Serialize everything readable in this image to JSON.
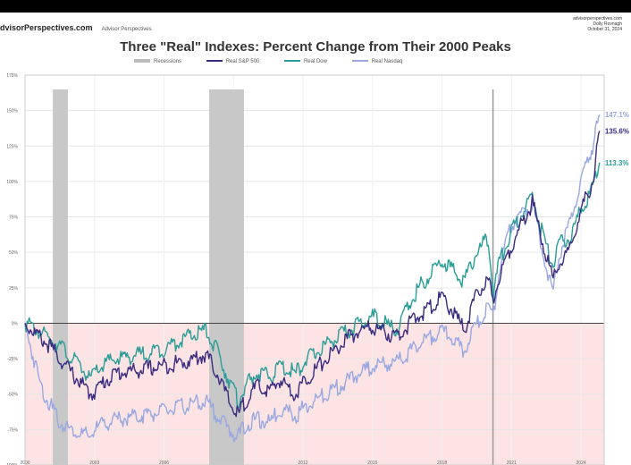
{
  "header": {
    "brand": "dvisorPerspectives.com",
    "brand_sub": "Advisor Perspectives",
    "corner_lines": [
      "advisorperspectives.com",
      "Dolly Rovnagh",
      "October 31, 2024"
    ],
    "title": "Three \"Real\" Indexes: Percent Change from Their 2000 Peaks"
  },
  "chart_data": {
    "type": "line",
    "title": "Three \"Real\" Indexes: Percent Change from Their 2000 Peaks",
    "xlabel": "",
    "ylabel": "",
    "xlim": [
      2000,
      2025
    ],
    "ylim": [
      -100,
      175
    ],
    "y_ticks": [
      175,
      150,
      125,
      100,
      75,
      50,
      25,
      0,
      -25,
      -50,
      -75,
      -100
    ],
    "y_tick_labels": [
      "175%",
      "150%",
      "125%",
      "100%",
      "75%",
      "50%",
      "25%",
      "0%",
      "-25%",
      "-50%",
      "-75%",
      "-100%"
    ],
    "x_ticks": [
      2000,
      2003,
      2006,
      2009,
      2012,
      2015,
      2018,
      2021,
      2024
    ],
    "x_tick_labels": [
      "2000",
      "2003",
      "2006",
      "2009",
      "2012",
      "2015",
      "2018",
      "2021",
      "2024"
    ],
    "grid": true,
    "legend": "top-center",
    "legend_entries": [
      {
        "name": "Recessions",
        "color": "#bdbdbd"
      },
      {
        "name": "Real S&P 500",
        "color": "#3a2a80"
      },
      {
        "name": "Real Dow",
        "color": "#2a9d98"
      },
      {
        "name": "Real Nasdaq",
        "color": "#9aa8e2"
      }
    ],
    "recessions": [
      [
        2001.2,
        2001.85
      ],
      [
        2007.95,
        2009.45
      ]
    ],
    "event_line": 2020.2,
    "negative_shading_color": "#fde4e4",
    "series": [
      {
        "name": "Real S&P 500",
        "color": "#3a2a80",
        "x": [
          2000,
          2000.5,
          2001,
          2001.5,
          2002,
          2002.4,
          2002.8,
          2003,
          2003.5,
          2004,
          2005,
          2006,
          2007,
          2007.8,
          2008.3,
          2008.8,
          2009.2,
          2009.5,
          2010,
          2010.6,
          2011,
          2011.7,
          2012,
          2013,
          2014,
          2014.5,
          2015,
          2015.5,
          2016,
          2016.5,
          2017,
          2018,
          2018.4,
          2018.95,
          2019.5,
          2020,
          2020.2,
          2020.5,
          2021,
          2021.9,
          2022.3,
          2022.8,
          2023,
          2023.5,
          2024,
          2024.5,
          2024.8
        ],
        "values": [
          0,
          -8,
          -15,
          -25,
          -35,
          -42,
          -50,
          -48,
          -40,
          -35,
          -33,
          -30,
          -27,
          -22,
          -35,
          -55,
          -65,
          -55,
          -45,
          -48,
          -40,
          -50,
          -42,
          -25,
          -10,
          -5,
          -3,
          -6,
          -10,
          -2,
          5,
          18,
          10,
          -5,
          20,
          30,
          15,
          35,
          55,
          85,
          60,
          30,
          40,
          50,
          80,
          100,
          135.6
        ]
      },
      {
        "name": "Real Dow",
        "color": "#2a9d98",
        "x": [
          2000,
          2000.5,
          2001,
          2001.5,
          2002,
          2002.4,
          2002.8,
          2003,
          2003.5,
          2004,
          2005,
          2006,
          2007,
          2007.8,
          2008.3,
          2008.8,
          2009.2,
          2009.5,
          2010,
          2010.6,
          2011,
          2011.7,
          2012,
          2013,
          2014,
          2014.5,
          2015,
          2015.5,
          2016,
          2016.5,
          2017,
          2018,
          2018.4,
          2018.95,
          2019.5,
          2020,
          2020.2,
          2020.5,
          2021,
          2021.9,
          2022.3,
          2022.8,
          2023,
          2023.5,
          2024,
          2024.5,
          2024.8
        ],
        "values": [
          0,
          -5,
          -10,
          -15,
          -25,
          -30,
          -40,
          -35,
          -28,
          -25,
          -22,
          -18,
          -10,
          -5,
          -20,
          -40,
          -55,
          -45,
          -35,
          -38,
          -30,
          -35,
          -28,
          -15,
          -5,
          0,
          5,
          0,
          -5,
          10,
          25,
          45,
          38,
          30,
          50,
          60,
          20,
          45,
          65,
          90,
          65,
          40,
          55,
          60,
          80,
          95,
          113.3
        ]
      },
      {
        "name": "Real Nasdaq",
        "color": "#9aa8e2",
        "x": [
          2000,
          2000.3,
          2000.7,
          2001,
          2001.5,
          2002,
          2002.4,
          2002.8,
          2003,
          2003.5,
          2004,
          2005,
          2006,
          2007,
          2007.8,
          2008.3,
          2008.8,
          2009.2,
          2009.5,
          2010,
          2010.6,
          2011,
          2011.7,
          2012,
          2013,
          2014,
          2015,
          2016,
          2017,
          2018,
          2018.4,
          2018.95,
          2019.5,
          2020,
          2020.2,
          2020.5,
          2021,
          2021.9,
          2022.3,
          2022.8,
          2023,
          2023.5,
          2024,
          2024.5,
          2024.8
        ],
        "values": [
          0,
          -20,
          -45,
          -55,
          -70,
          -75,
          -78,
          -80,
          -75,
          -70,
          -68,
          -65,
          -62,
          -58,
          -55,
          -65,
          -75,
          -80,
          -72,
          -68,
          -70,
          -60,
          -65,
          -60,
          -50,
          -40,
          -30,
          -28,
          -15,
          -5,
          -10,
          -20,
          0,
          10,
          5,
          40,
          70,
          85,
          55,
          20,
          45,
          70,
          100,
          125,
          147.1
        ]
      }
    ],
    "end_labels": [
      {
        "series": "Real Nasdaq",
        "text": "147.1%",
        "value": 147.1
      },
      {
        "series": "Real S&P 500",
        "text": "135.6%",
        "value": 135.6
      },
      {
        "series": "Real Dow",
        "text": "113.3%",
        "value": 113.3
      }
    ]
  }
}
